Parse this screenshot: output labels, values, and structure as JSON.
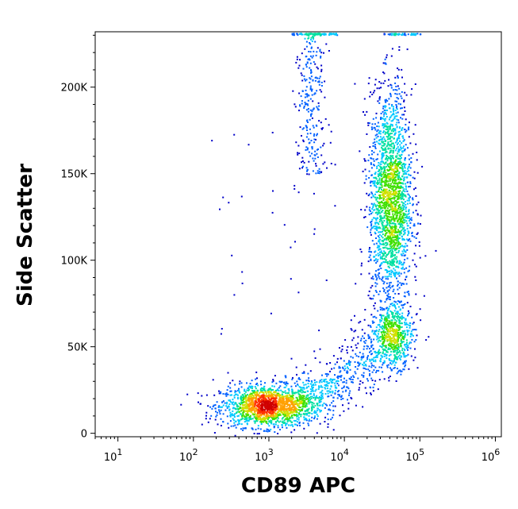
{
  "chart_data": {
    "type": "scatter",
    "subtype": "flow-cytometry-density-plot",
    "title": "",
    "xlabel": "CD89 APC",
    "ylabel": "Side Scatter",
    "xscale": "log",
    "xlim": [
      5,
      1200000
    ],
    "ylim": [
      -2000,
      232000
    ],
    "grid": false,
    "legend": "none",
    "x_ticks": [
      {
        "value": 10,
        "base": "10",
        "exp": "1"
      },
      {
        "value": 100,
        "base": "10",
        "exp": "2"
      },
      {
        "value": 1000,
        "base": "10",
        "exp": "3"
      },
      {
        "value": 10000,
        "base": "10",
        "exp": "4"
      },
      {
        "value": 100000,
        "base": "10",
        "exp": "5"
      },
      {
        "value": 1000000,
        "base": "10",
        "exp": "6"
      }
    ],
    "y_ticks": [
      {
        "value": 0,
        "label": "0"
      },
      {
        "value": 50000,
        "label": "50K"
      },
      {
        "value": 100000,
        "label": "100K"
      },
      {
        "value": 150000,
        "label": "150K"
      },
      {
        "value": 200000,
        "label": "200K"
      }
    ],
    "populations": [
      {
        "center_x": 900,
        "center_y": 16000,
        "spread_log10_x": 0.3,
        "spread_y": 6000,
        "count": 1500
      },
      {
        "center_x": 40000,
        "center_y": 135000,
        "spread_log10_x": 0.14,
        "spread_y": 32000,
        "count": 2100
      },
      {
        "center_x": 45000,
        "center_y": 57000,
        "spread_log10_x": 0.12,
        "spread_y": 9000,
        "count": 500
      }
    ],
    "colors": {
      "density_scale": [
        "#0000c8",
        "#0060ff",
        "#00c8ff",
        "#00e0a0",
        "#40e000",
        "#d0e000",
        "#ffa000",
        "#ff3000",
        "#d00000"
      ],
      "axis": "#000000"
    }
  }
}
